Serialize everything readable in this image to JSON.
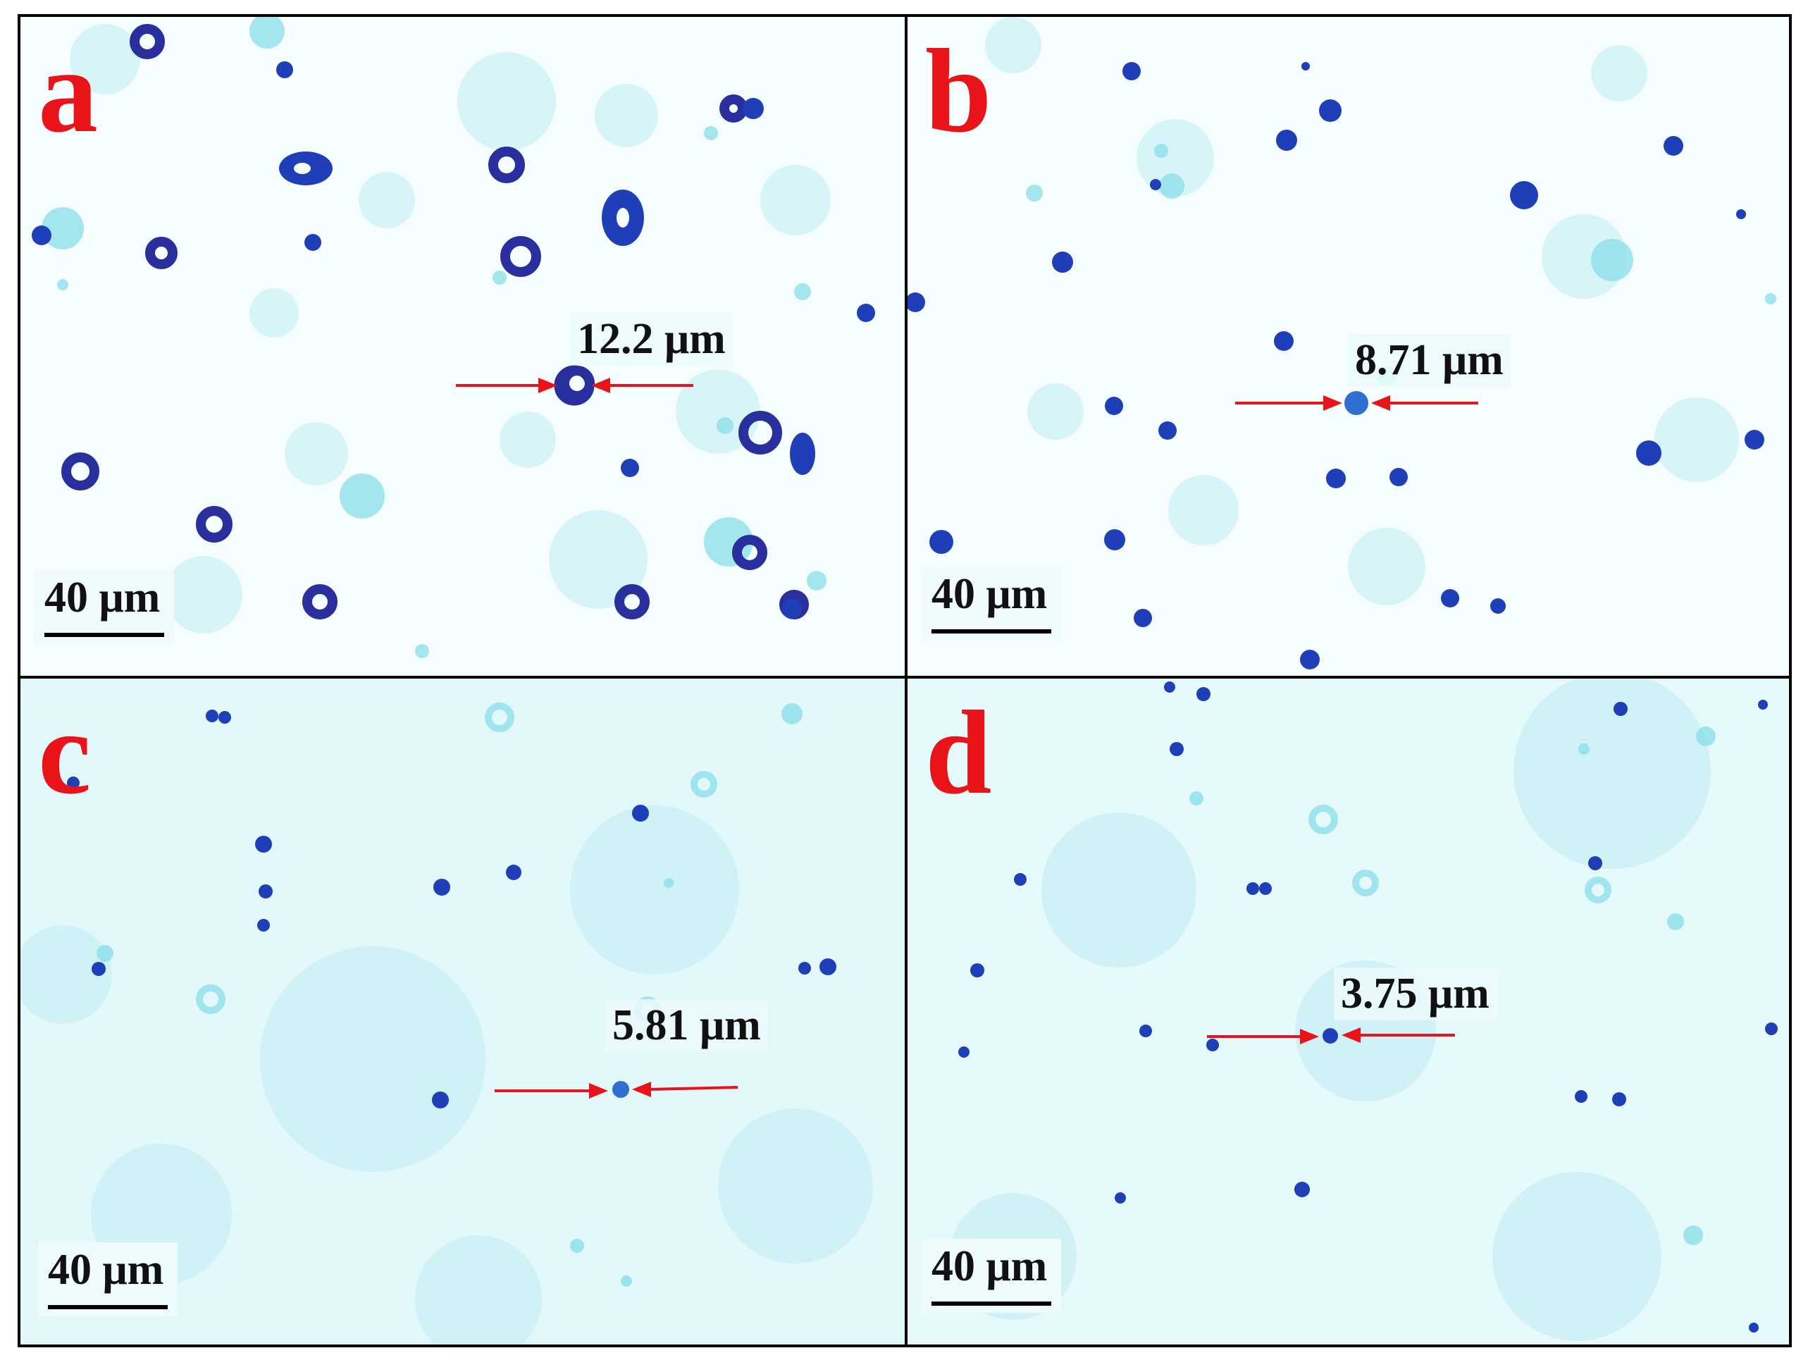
{
  "figure": {
    "panels": [
      {
        "id": "a",
        "label": "a",
        "measurement": "12.2  μm",
        "scale_bar": "40 μm",
        "particle_style": "rings"
      },
      {
        "id": "b",
        "label": "b",
        "measurement": "8.71  μm",
        "scale_bar": "40 μm",
        "particle_style": "dots"
      },
      {
        "id": "c",
        "label": "c",
        "measurement": "5.81  μm",
        "scale_bar": "40 μm",
        "particle_style": "small-dots"
      },
      {
        "id": "d",
        "label": "d",
        "measurement": "3.75  μm",
        "scale_bar": "40 μm",
        "particle_style": "small-dots"
      }
    ],
    "colors": {
      "label_red": "#e8141a",
      "arrow_red": "#e8141a",
      "background_cyan": "#bfeff5",
      "particle_blue": "#1f3fb8",
      "particle_ring_purple": "#5b2a9a"
    }
  }
}
